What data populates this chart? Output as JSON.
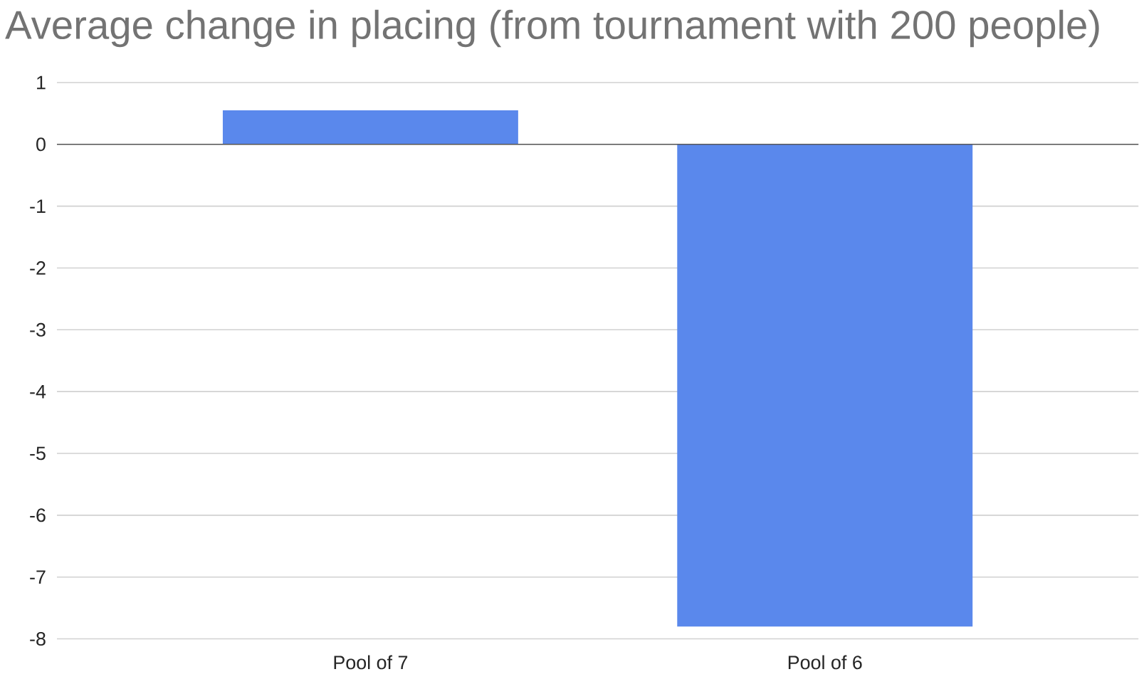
{
  "chart_data": {
    "type": "bar",
    "title": "Average change in placing (from tournament with 200 people)",
    "categories": [
      "Pool of 7",
      "Pool of 6"
    ],
    "values": [
      0.55,
      -7.8
    ],
    "color": "#5a88ec",
    "ylim": [
      -8,
      1
    ],
    "yticks": [
      -8,
      -7,
      -6,
      -5,
      -4,
      -3,
      -2,
      -1,
      0,
      1
    ],
    "grid": "y"
  }
}
